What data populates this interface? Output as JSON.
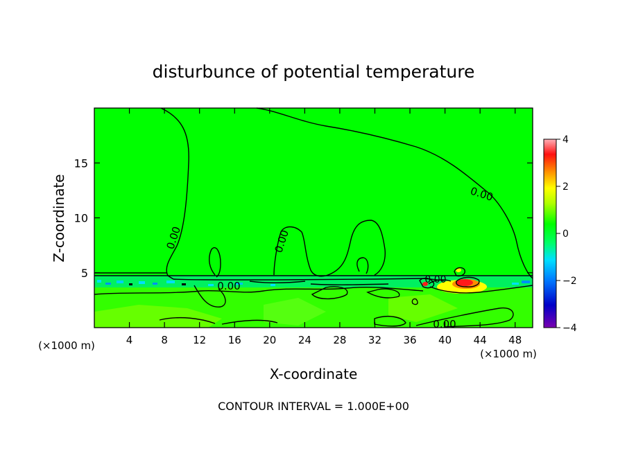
{
  "chart_data": {
    "type": "heatmap",
    "title": "disturbunce of potential temperature",
    "xlabel": "X-coordinate",
    "ylabel": "Z-coordinate",
    "x_unit_left": "(×1000 m)",
    "x_unit_right": "(×1000 m)",
    "footer": "CONTOUR INTERVAL = 1.000E+00",
    "xlim": [
      0,
      50
    ],
    "ylim": [
      0,
      20
    ],
    "x_ticks": [
      4,
      8,
      12,
      16,
      20,
      24,
      28,
      32,
      36,
      40,
      44,
      48
    ],
    "y_ticks": [
      5,
      10,
      15
    ],
    "colorbar": {
      "range": [
        -4,
        4
      ],
      "ticks": [
        4,
        2,
        0,
        -2,
        -4
      ],
      "colors": [
        "#7a00b0",
        "#0000c8",
        "#0078ff",
        "#00e0ff",
        "#00ff44",
        "#00ff00",
        "#a0ff00",
        "#ffff00",
        "#ff8c00",
        "#ff2020",
        "#ff9aa0"
      ]
    },
    "background_value": 0,
    "contour_labels": [
      {
        "text": "0.00",
        "x": 10.2,
        "z": 8.0
      },
      {
        "text": "0.00",
        "x": 17.7,
        "z": 4.0
      },
      {
        "text": "0.00",
        "x": 21.8,
        "z": 8.0
      },
      {
        "text": "0.00",
        "x": 44.2,
        "z": 12.3
      },
      {
        "text": "0.00",
        "x": 38.9,
        "z": 4.1
      },
      {
        "text": "0.00",
        "x": 39.6,
        "z": 0.3
      }
    ]
  }
}
